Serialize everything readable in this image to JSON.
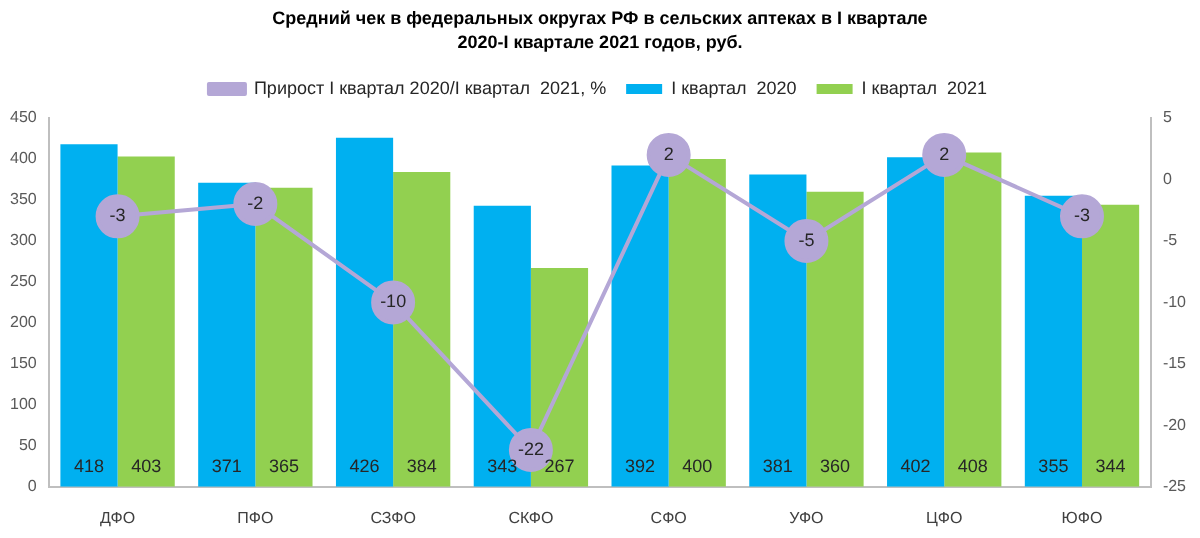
{
  "chart_data": {
    "type": "bar",
    "title": "Средний чек в федеральных округах РФ в сельских аптеках  в I квартале 2020-I квартале  2021 годов, руб.",
    "categories": [
      "ДФО",
      "ПФО",
      "СЗФО",
      "СКФО",
      "СФО",
      "УФО",
      "ЦФО",
      "ЮФО"
    ],
    "series": [
      {
        "name": "I квартал  2020",
        "color": "#00b0f0",
        "values": [
          418,
          371,
          426,
          343,
          392,
          381,
          402,
          355
        ]
      },
      {
        "name": "I квартал  2021",
        "color": "#92d050",
        "values": [
          403,
          365,
          384,
          267,
          400,
          360,
          408,
          344
        ]
      },
      {
        "name": "Прирост I квартал 2020/I квартал  2021, %",
        "type": "line",
        "axis": "y2",
        "color": "#b4a7d6",
        "values": [
          -3,
          -2,
          -10,
          -22,
          2,
          -5,
          2,
          -3
        ]
      }
    ],
    "ylim": [
      0,
      450
    ],
    "yticks": [
      0,
      50,
      100,
      150,
      200,
      250,
      300,
      350,
      400,
      450
    ],
    "y2lim": [
      -25,
      5
    ],
    "y2ticks": [
      -25,
      -20,
      -15,
      -10,
      -5,
      0,
      5
    ],
    "grid": false,
    "legend": "top",
    "marker": "circle",
    "line_style": "solid",
    "data_labels": true
  }
}
